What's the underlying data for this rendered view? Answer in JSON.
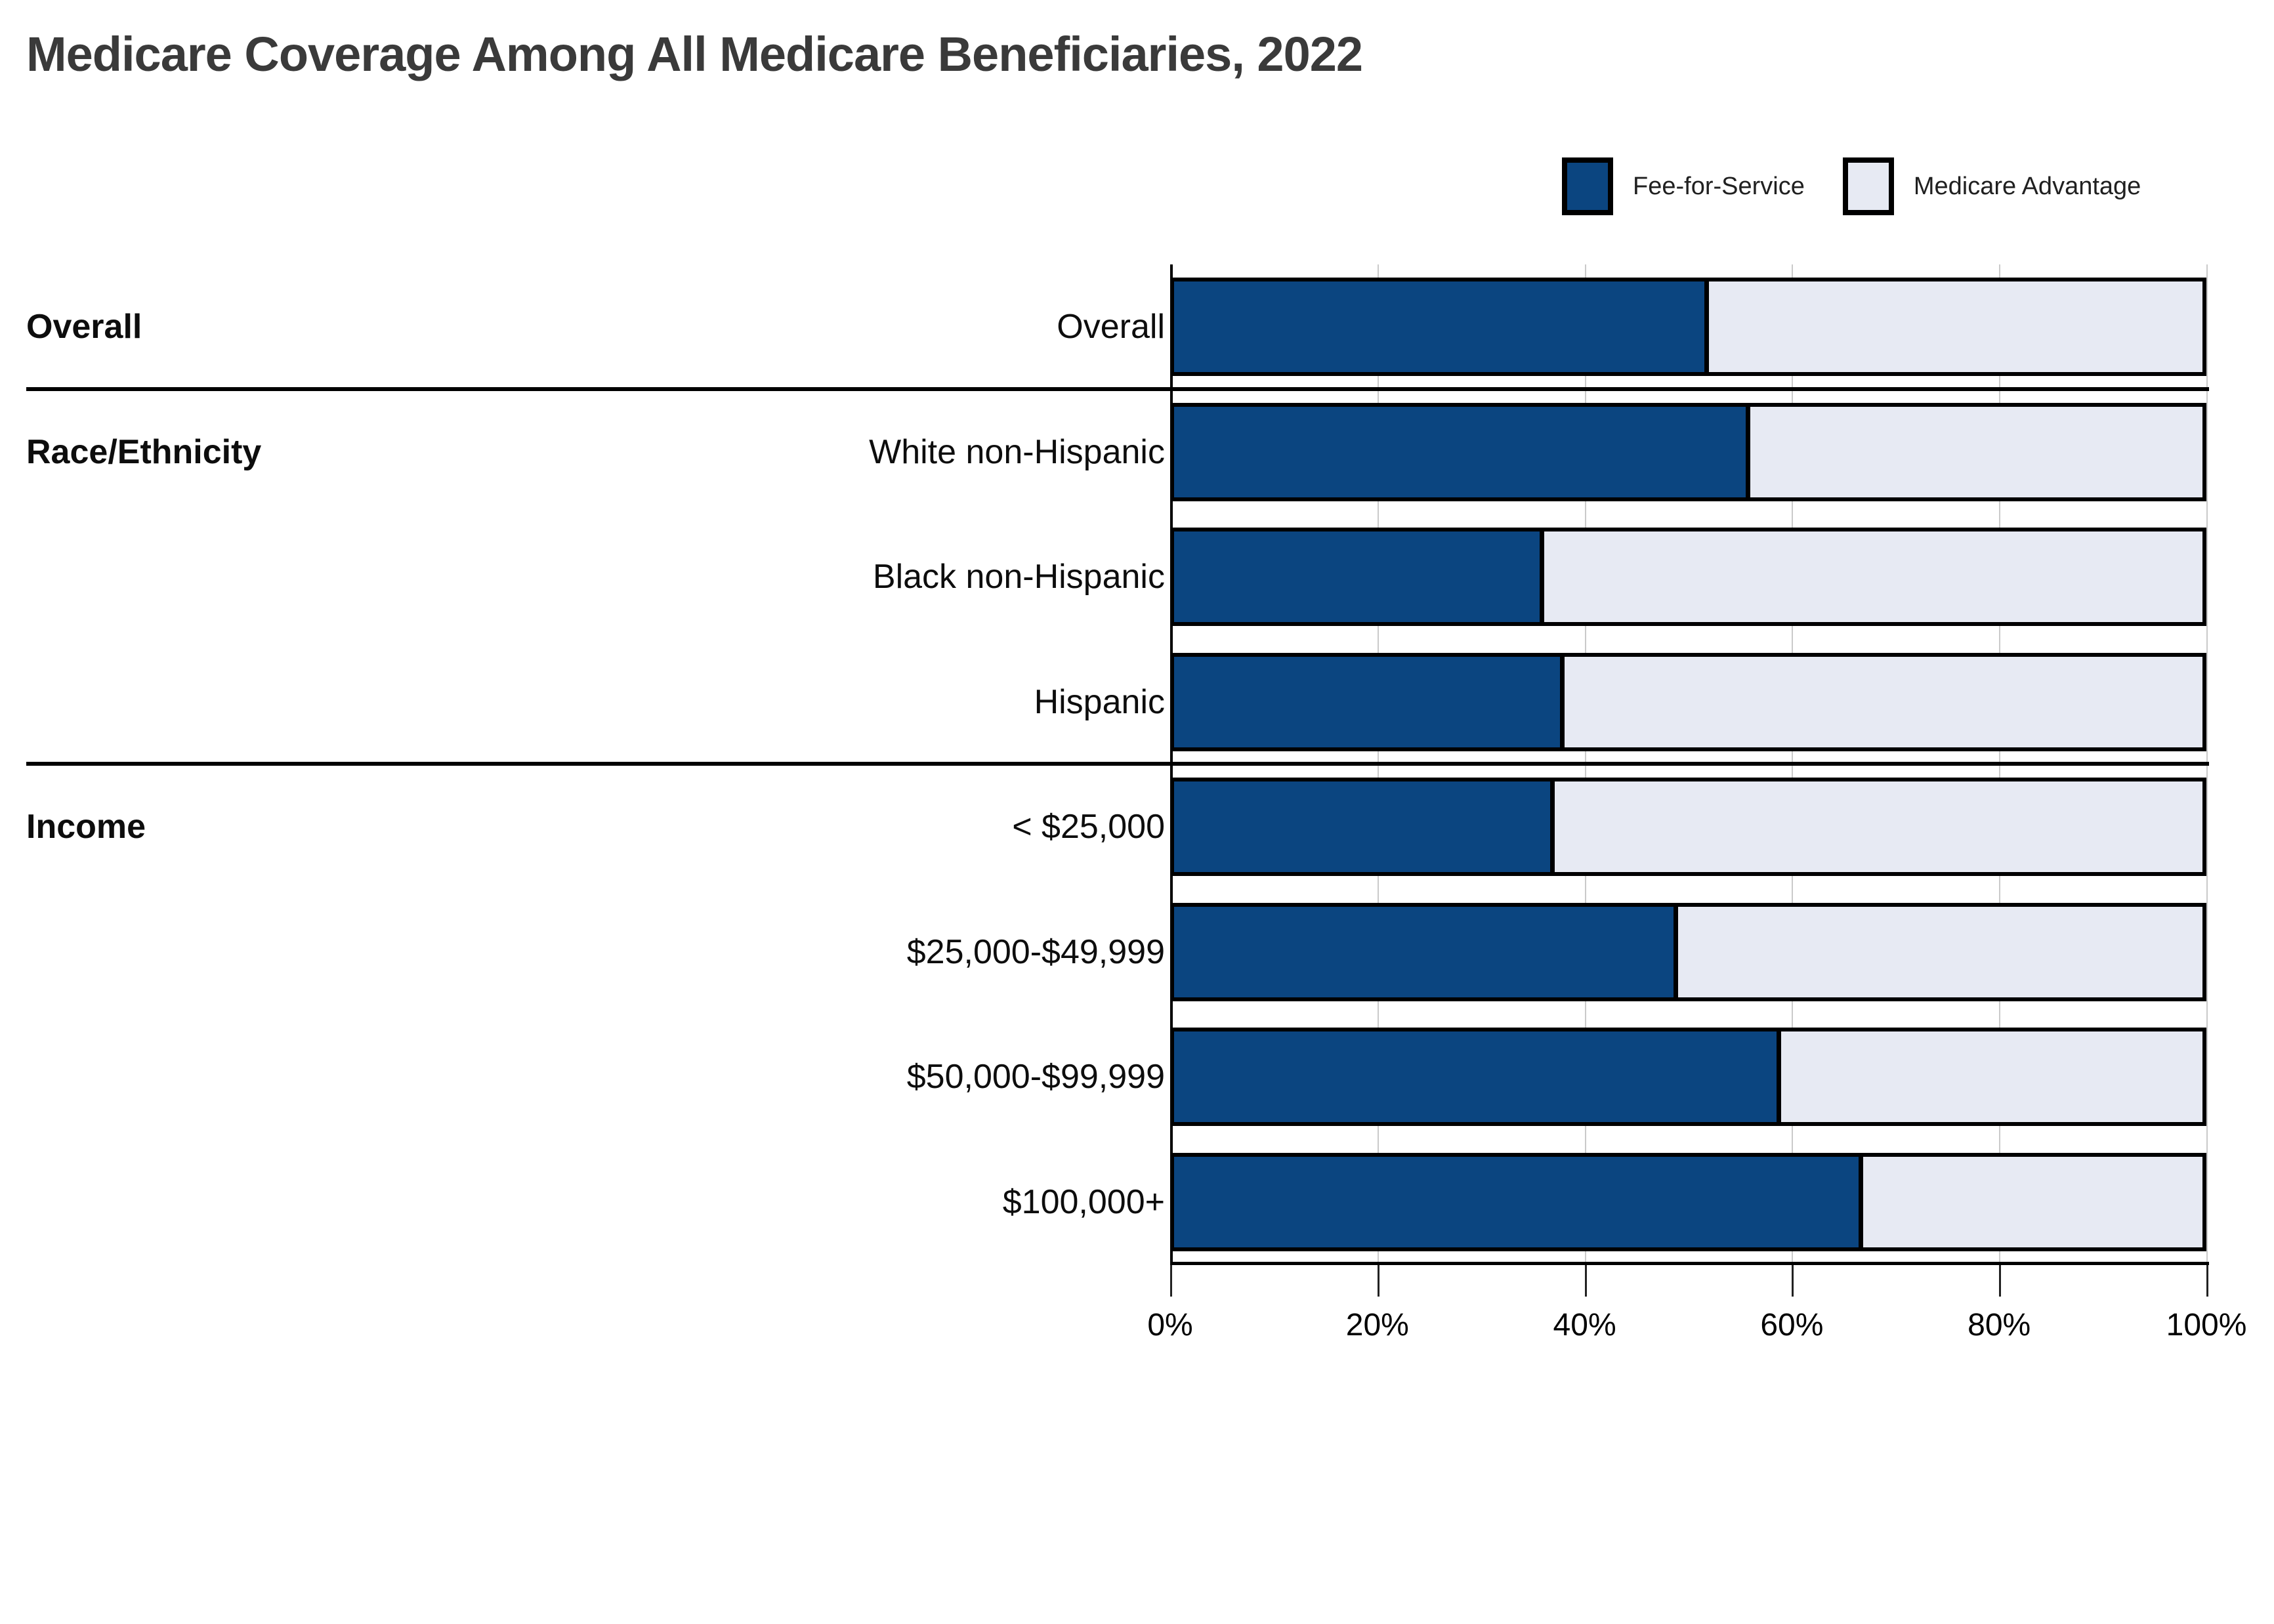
{
  "title": "Medicare Coverage Among All Medicare Beneficiaries, 2022",
  "colors": {
    "fee_for_service": "#0b4580",
    "medicare_advantage": "#e7eaf3",
    "bar_border": "#000000",
    "title_text": "#3a3a3a"
  },
  "legend": {
    "position": "top-right",
    "items": [
      {
        "label": "Fee-for-Service",
        "color": "#0b4580"
      },
      {
        "label": "Medicare Advantage",
        "color": "#e7eaf3"
      }
    ]
  },
  "axis": {
    "min": 0,
    "max": 100,
    "tick_values": [
      0,
      20,
      40,
      60,
      80,
      100
    ],
    "tick_labels": [
      "0%",
      "20%",
      "40%",
      "60%",
      "80%",
      "100%"
    ],
    "gridline_values": [
      20,
      40,
      60,
      80,
      100
    ]
  },
  "rows": [
    {
      "group": "Overall",
      "label": "Overall",
      "fee_for_service": 52,
      "medicare_advantage": 48,
      "separator_after": true
    },
    {
      "group": "Race/Ethnicity",
      "label": "White non-Hispanic",
      "fee_for_service": 56,
      "medicare_advantage": 44,
      "separator_after": false
    },
    {
      "group": "",
      "label": "Black non-Hispanic",
      "fee_for_service": 36,
      "medicare_advantage": 64,
      "separator_after": false
    },
    {
      "group": "",
      "label": "Hispanic",
      "fee_for_service": 38,
      "medicare_advantage": 62,
      "separator_after": true
    },
    {
      "group": "Income",
      "label": "< $25,000",
      "fee_for_service": 37,
      "medicare_advantage": 63,
      "separator_after": false
    },
    {
      "group": "",
      "label": "$25,000-$49,999",
      "fee_for_service": 49,
      "medicare_advantage": 51,
      "separator_after": false
    },
    {
      "group": "",
      "label": "$50,000-$99,999",
      "fee_for_service": 59,
      "medicare_advantage": 41,
      "separator_after": false
    },
    {
      "group": "",
      "label": "$100,000+",
      "fee_for_service": 67,
      "medicare_advantage": 33,
      "separator_after": false
    }
  ],
  "chart_data": {
    "type": "bar",
    "orientation": "horizontal",
    "stacked": true,
    "title": "Medicare Coverage Among All Medicare Beneficiaries, 2022",
    "categories": [
      "Overall",
      "White non-Hispanic",
      "Black non-Hispanic",
      "Hispanic",
      "< $25,000",
      "$25,000-$49,999",
      "$50,000-$99,999",
      "$100,000+"
    ],
    "category_groups": [
      {
        "name": "Overall",
        "categories": [
          "Overall"
        ]
      },
      {
        "name": "Race/Ethnicity",
        "categories": [
          "White non-Hispanic",
          "Black non-Hispanic",
          "Hispanic"
        ]
      },
      {
        "name": "Income",
        "categories": [
          "< $25,000",
          "$25,000-$49,999",
          "$50,000-$99,999",
          "$100,000+"
        ]
      }
    ],
    "series": [
      {
        "name": "Fee-for-Service",
        "color": "#0b4580",
        "values": [
          52,
          56,
          36,
          38,
          37,
          49,
          59,
          67
        ]
      },
      {
        "name": "Medicare Advantage",
        "color": "#e7eaf3",
        "values": [
          48,
          44,
          64,
          62,
          63,
          51,
          41,
          33
        ]
      }
    ],
    "xlabel": "",
    "ylabel": "",
    "xlim": [
      0,
      100
    ],
    "x_tick_labels": [
      "0%",
      "20%",
      "40%",
      "60%",
      "80%",
      "100%"
    ],
    "grid": "vertical",
    "legend_position": "top-right"
  }
}
